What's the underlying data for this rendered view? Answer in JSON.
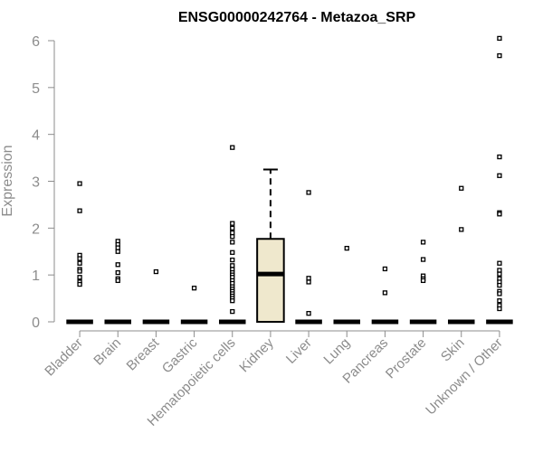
{
  "chart_data": {
    "type": "boxplot",
    "title": "ENSG00000242764 - Metazoa_SRP",
    "xlabel": "",
    "ylabel": "Expression",
    "ylim": [
      0,
      6
    ],
    "yticks": [
      0,
      1,
      2,
      3,
      4,
      5,
      6
    ],
    "grid": false,
    "colors": {
      "box_fill": "#efe8cd",
      "box_stroke": "#000000",
      "axis": "#8c8c8c"
    },
    "categories": [
      "Bladder",
      "Brain",
      "Breast",
      "Gastric",
      "Hematopoietic cells",
      "Kidney",
      "Liver",
      "Lung",
      "Pancreas",
      "Prostate",
      "Skin",
      "Unknown / Other"
    ],
    "boxes": [
      {
        "category": "Bladder",
        "q1": 0,
        "median": 0,
        "q3": 0,
        "whisker_low": 0,
        "whisker_high": 0,
        "outliers": [
          2.95,
          2.37,
          1.42,
          1.35,
          1.25,
          1.12,
          1.08,
          0.95,
          0.85,
          0.8
        ]
      },
      {
        "category": "Brain",
        "q1": 0,
        "median": 0,
        "q3": 0,
        "whisker_low": 0,
        "whisker_high": 0,
        "outliers": [
          1.72,
          1.65,
          1.58,
          1.5,
          1.22,
          1.05,
          0.92,
          0.88
        ]
      },
      {
        "category": "Breast",
        "q1": 0,
        "median": 0,
        "q3": 0,
        "whisker_low": 0,
        "whisker_high": 0,
        "outliers": [
          1.07
        ]
      },
      {
        "category": "Gastric",
        "q1": 0,
        "median": 0,
        "q3": 0,
        "whisker_low": 0,
        "whisker_high": 0,
        "outliers": [
          0.72
        ]
      },
      {
        "category": "Hematopoietic cells",
        "q1": 0,
        "median": 0,
        "q3": 0,
        "whisker_low": 0,
        "whisker_high": 0,
        "outliers": [
          3.72,
          2.1,
          2.0,
          1.9,
          1.82,
          1.7,
          1.48,
          1.32,
          1.2,
          1.12,
          1.05,
          1.0,
          0.95,
          0.88,
          0.82,
          0.75,
          0.7,
          0.65,
          0.6,
          0.55,
          0.5,
          0.45,
          0.22
        ]
      },
      {
        "category": "Kidney",
        "q1": 0,
        "median": 1.02,
        "q3": 1.77,
        "whisker_low": 0,
        "whisker_high": 3.25,
        "outliers": []
      },
      {
        "category": "Liver",
        "q1": 0,
        "median": 0,
        "q3": 0,
        "whisker_low": 0,
        "whisker_high": 0,
        "outliers": [
          2.76,
          0.93,
          0.85,
          0.18
        ]
      },
      {
        "category": "Lung",
        "q1": 0,
        "median": 0,
        "q3": 0,
        "whisker_low": 0,
        "whisker_high": 0,
        "outliers": [
          1.57
        ]
      },
      {
        "category": "Pancreas",
        "q1": 0,
        "median": 0,
        "q3": 0,
        "whisker_low": 0,
        "whisker_high": 0,
        "outliers": [
          1.13,
          0.62
        ]
      },
      {
        "category": "Prostate",
        "q1": 0,
        "median": 0,
        "q3": 0,
        "whisker_low": 0,
        "whisker_high": 0,
        "outliers": [
          1.7,
          1.33,
          0.98,
          0.92,
          0.88
        ]
      },
      {
        "category": "Skin",
        "q1": 0,
        "median": 0,
        "q3": 0,
        "whisker_low": 0,
        "whisker_high": 0,
        "outliers": [
          2.85,
          1.97
        ]
      },
      {
        "category": "Unknown / Other",
        "q1": 0,
        "median": 0,
        "q3": 0,
        "whisker_low": 0,
        "whisker_high": 0,
        "outliers": [
          6.05,
          5.68,
          3.52,
          3.12,
          2.33,
          2.3,
          1.25,
          1.1,
          1.02,
          0.92,
          0.85,
          0.78,
          0.65,
          0.6,
          0.45,
          0.35,
          0.28
        ]
      }
    ]
  }
}
